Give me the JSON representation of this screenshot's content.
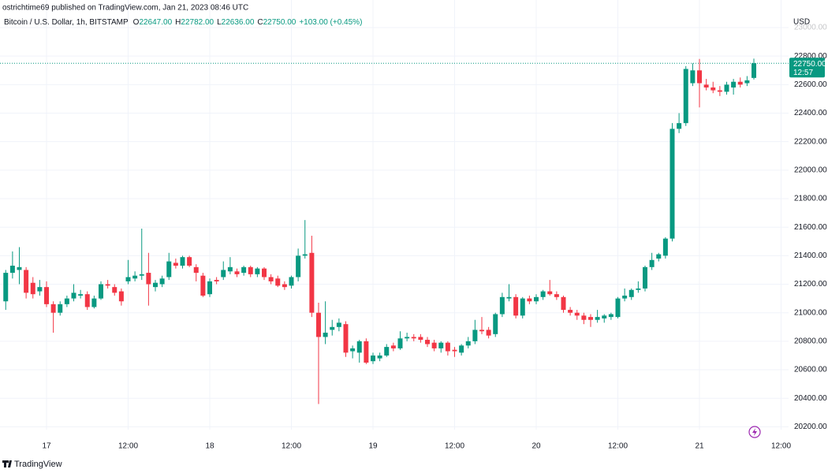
{
  "header": {
    "published_by": "ostrichtime69 published on TradingView.com, Jan 21, 2023 08:46 UTC",
    "symbol": "Bitcoin / U.S. Dollar, 1h, BITSTAMP",
    "ohlc_readout": [
      {
        "key": "O",
        "value": "22647.00"
      },
      {
        "key": "H",
        "value": "22782.00"
      },
      {
        "key": "L",
        "value": "22636.00"
      },
      {
        "key": "C",
        "value": "22750.00"
      }
    ],
    "change": "+103.00 (+0.45%)"
  },
  "chart_data": {
    "type": "candlestick",
    "currency": "USD",
    "up_color": "#089981",
    "down_color": "#f23645",
    "grid": true,
    "last_price_label": "22750.00",
    "countdown": "12:57",
    "categories": [
      null,
      null,
      null,
      null,
      null,
      null,
      "17",
      null,
      null,
      null,
      null,
      null,
      null,
      null,
      null,
      null,
      null,
      null,
      "12:00",
      null,
      null,
      null,
      null,
      null,
      null,
      null,
      null,
      null,
      null,
      null,
      "18",
      null,
      null,
      null,
      null,
      null,
      null,
      null,
      null,
      null,
      null,
      null,
      "12:00",
      null,
      null,
      null,
      null,
      null,
      null,
      null,
      null,
      null,
      null,
      null,
      "19",
      null,
      null,
      null,
      null,
      null,
      null,
      null,
      null,
      null,
      null,
      null,
      "12:00",
      null,
      null,
      null,
      null,
      null,
      null,
      null,
      null,
      null,
      null,
      null,
      "20",
      null,
      null,
      null,
      null,
      null,
      null,
      null,
      null,
      null,
      null,
      null,
      "12:00",
      null,
      null,
      null,
      null,
      null,
      null,
      null,
      null,
      null,
      null,
      null,
      "21",
      null,
      null,
      null,
      null,
      null,
      null,
      null,
      null,
      null,
      null,
      null,
      "12:00"
    ],
    "open": [
      21080,
      21280,
      21300,
      21300,
      21210,
      21150,
      21180,
      21060,
      21000,
      21060,
      21100,
      21120,
      21130,
      21040,
      21100,
      21200,
      21180,
      21150,
      21220,
      21240,
      21260,
      21280,
      21180,
      21200,
      21250,
      21350,
      21330,
      21390,
      21320,
      21260,
      21130,
      21230,
      21250,
      21290,
      21290,
      21280,
      21320,
      21270,
      21310,
      21250,
      21240,
      21200,
      21190,
      21250,
      21400,
      21420,
      21000,
      20830,
      20880,
      20900,
      20920,
      20730,
      20720,
      20800,
      20660,
      20680,
      20700,
      20770,
      20750,
      20820,
      20830,
      20830,
      20810,
      20790,
      20750,
      20790,
      20740,
      20720,
      20770,
      20800,
      20880,
      20880,
      20850,
      20990,
      21100,
      21110,
      20980,
      21100,
      21080,
      21110,
      21150,
      21130,
      21110,
      21020,
      21000,
      20980,
      20970,
      20950,
      20960,
      20970,
      20970,
      21100,
      21110,
      21160,
      21170,
      21320,
      21380,
      21400,
      21520,
      22290,
      22330,
      22610,
      22700,
      22600,
      22580,
      22560,
      22550,
      22580,
      22620,
      22610,
      22647,
      null,
      null,
      null,
      null
    ],
    "high": [
      21300,
      21430,
      21460,
      21320,
      21250,
      21230,
      21220,
      21080,
      21080,
      21120,
      21200,
      21160,
      21150,
      21120,
      21220,
      21230,
      21200,
      21170,
      21370,
      21290,
      21590,
      21420,
      21230,
      21260,
      21420,
      21380,
      21400,
      21400,
      21340,
      21280,
      21240,
      21250,
      21360,
      21390,
      21310,
      21330,
      21330,
      21320,
      21320,
      21270,
      21260,
      21220,
      21260,
      21450,
      21650,
      21540,
      21070,
      21080,
      20950,
      20960,
      20940,
      20770,
      20810,
      20820,
      20720,
      20720,
      20780,
      20790,
      20870,
      20860,
      20850,
      20850,
      20830,
      20810,
      20800,
      20800,
      20760,
      20780,
      20830,
      20950,
      20970,
      20900,
      21000,
      21140,
      21200,
      21130,
      21110,
      21120,
      21130,
      21160,
      21230,
      21150,
      21120,
      21040,
      21020,
      21000,
      20990,
      21020,
      20990,
      21000,
      21110,
      21170,
      21170,
      21220,
      21330,
      21420,
      21420,
      21530,
      22330,
      22400,
      22730,
      22750,
      22780,
      22640,
      22620,
      22590,
      22620,
      22640,
      22650,
      22660,
      22782,
      null,
      null,
      null,
      null
    ],
    "low": [
      21020,
      21240,
      21200,
      21100,
      21100,
      21120,
      21040,
      20860,
      20980,
      21040,
      21080,
      21100,
      21020,
      21030,
      21090,
      21170,
      21120,
      21050,
      21200,
      21220,
      21230,
      21050,
      21150,
      21180,
      21230,
      21310,
      21310,
      21320,
      21220,
      21110,
      21110,
      21200,
      21230,
      21270,
      21250,
      21260,
      21250,
      21250,
      21230,
      21200,
      21180,
      21160,
      21170,
      21220,
      21380,
      20970,
      20360,
      20780,
      20840,
      20870,
      20690,
      20680,
      20650,
      20640,
      20640,
      20660,
      20690,
      20730,
      20740,
      20800,
      20800,
      20790,
      20760,
      20730,
      20720,
      20700,
      20690,
      20700,
      20750,
      20780,
      20850,
      20820,
      20830,
      20970,
      21080,
      20960,
      20960,
      21060,
      21060,
      21090,
      21120,
      21090,
      21000,
      20980,
      20950,
      20920,
      20900,
      20930,
      20930,
      20950,
      20960,
      21080,
      21090,
      21140,
      21150,
      21300,
      21360,
      21380,
      21500,
      22260,
      22310,
      22590,
      22440,
      22560,
      22540,
      22520,
      22530,
      22530,
      22580,
      22590,
      22636,
      null,
      null,
      null,
      null
    ],
    "close": [
      21280,
      21330,
      21320,
      21140,
      21130,
      21180,
      21060,
      21000,
      21060,
      21100,
      21140,
      21130,
      21040,
      21100,
      21200,
      21190,
      21140,
      21080,
      21250,
      21260,
      21270,
      21200,
      21210,
      21240,
      21360,
      21330,
      21390,
      21330,
      21280,
      21120,
      21220,
      21220,
      21300,
      21320,
      21270,
      21320,
      21270,
      21310,
      21250,
      21220,
      21190,
      21180,
      21250,
      21400,
      21410,
      21000,
      20830,
      20860,
      20900,
      20930,
      20720,
      20750,
      20800,
      20650,
      20700,
      20700,
      20760,
      20750,
      20820,
      20830,
      20820,
      20810,
      20780,
      20750,
      20790,
      20730,
      20730,
      20770,
      20800,
      20880,
      20870,
      20840,
      20990,
      21110,
      21110,
      20980,
      21100,
      21080,
      21110,
      21150,
      21130,
      21110,
      21020,
      21000,
      20980,
      20950,
      20950,
      20970,
      20980,
      20990,
      21100,
      21120,
      21160,
      21170,
      21320,
      21370,
      21410,
      21520,
      22290,
      22330,
      22710,
      22700,
      22610,
      22580,
      22560,
      22550,
      22600,
      22620,
      22600,
      22630,
      22750,
      null,
      null,
      null,
      null
    ],
    "ylim": [
      20180,
      23000
    ],
    "yticks": [
      {
        "value": 20200,
        "label": "20200.00"
      },
      {
        "value": 20400,
        "label": "20400.00"
      },
      {
        "value": 20600,
        "label": "20600.00"
      },
      {
        "value": 20800,
        "label": "20800.00"
      },
      {
        "value": 21000,
        "label": "21000.00"
      },
      {
        "value": 21200,
        "label": "21200.00"
      },
      {
        "value": 21400,
        "label": "21400.00"
      },
      {
        "value": 21600,
        "label": "21600.00"
      },
      {
        "value": 21800,
        "label": "21800.00"
      },
      {
        "value": 22000,
        "label": "22000.00"
      },
      {
        "value": 22200,
        "label": "22200.00"
      },
      {
        "value": 22400,
        "label": "22400.00"
      },
      {
        "value": 22600,
        "label": "22600.00"
      },
      {
        "value": 22800,
        "label": "22800.00"
      },
      {
        "value": 23000,
        "label": "23000.00"
      }
    ]
  },
  "footer": {
    "brand": "TradingView"
  }
}
